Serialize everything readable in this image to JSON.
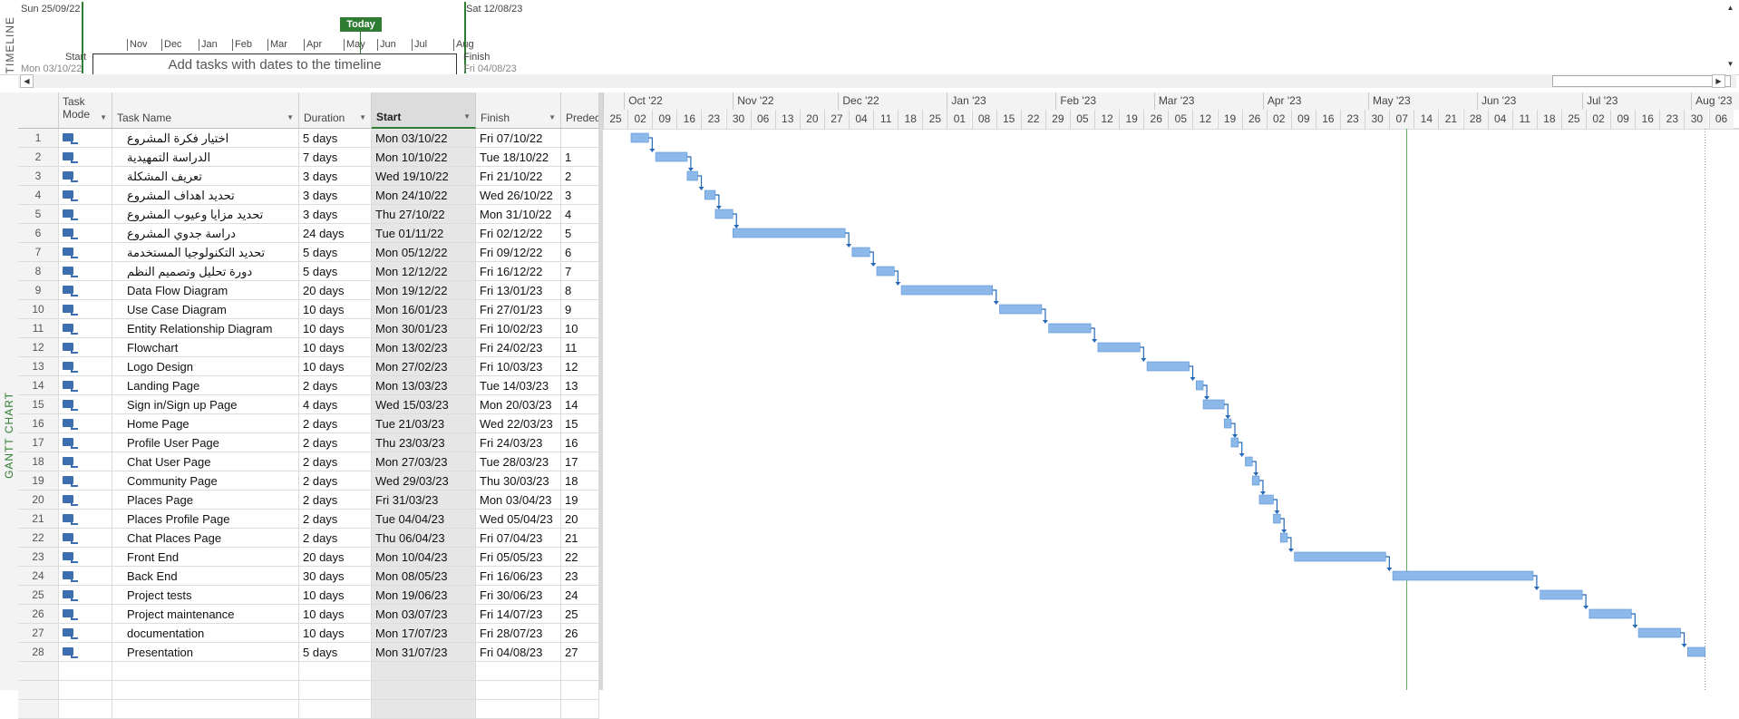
{
  "timeline": {
    "side_label": "TIMELINE",
    "range_start": "Sun 25/09/22",
    "range_end": "Sat 12/08/23",
    "today_label": "Today",
    "months": [
      "Nov",
      "Dec",
      "Jan",
      "Feb",
      "Mar",
      "Apr",
      "May",
      "Jun",
      "Jul",
      "Aug"
    ],
    "start_label": "Start",
    "start_date": "Mon 03/10/22",
    "finish_label": "Finish",
    "finish_date": "Fri 04/08/23",
    "placeholder": "Add tasks with dates to the timeline"
  },
  "gantt_side_label": "GANTT CHART",
  "columns": {
    "mode": "Task Mode",
    "name": "Task Name",
    "duration": "Duration",
    "start": "Start",
    "finish": "Finish",
    "pred": "Predec"
  },
  "chart_header": {
    "months": [
      "Oct '22",
      "Nov '22",
      "Dec '22",
      "Jan '23",
      "Feb '23",
      "Mar '23",
      "Apr '23",
      "May '23",
      "Jun '23",
      "Jul '23",
      "Aug '23"
    ],
    "days": [
      "25",
      "02",
      "09",
      "16",
      "23",
      "30",
      "06",
      "13",
      "20",
      "27",
      "04",
      "11",
      "18",
      "25",
      "01",
      "08",
      "15",
      "22",
      "29",
      "05",
      "12",
      "19",
      "26",
      "05",
      "12",
      "19",
      "26",
      "02",
      "09",
      "16",
      "23",
      "30",
      "07",
      "14",
      "21",
      "28",
      "04",
      "11",
      "18",
      "25",
      "02",
      "09",
      "16",
      "23",
      "30",
      "06"
    ]
  },
  "tasks": [
    {
      "id": "1",
      "name": "اختيار فكرة المشروع",
      "duration": "5 days",
      "start": "Mon 03/10/22",
      "finish": "Fri 07/10/22",
      "pred": ""
    },
    {
      "id": "2",
      "name": "الدراسة التمهيدية",
      "duration": "7 days",
      "start": "Mon 10/10/22",
      "finish": "Tue 18/10/22",
      "pred": "1"
    },
    {
      "id": "3",
      "name": "تعريف المشكلة",
      "duration": "3 days",
      "start": "Wed 19/10/22",
      "finish": "Fri 21/10/22",
      "pred": "2"
    },
    {
      "id": "4",
      "name": "تحديد اهداف المشروع",
      "duration": "3 days",
      "start": "Mon 24/10/22",
      "finish": "Wed 26/10/22",
      "pred": "3"
    },
    {
      "id": "5",
      "name": "تحديد مزايا وعيوب المشروع",
      "duration": "3 days",
      "start": "Thu 27/10/22",
      "finish": "Mon 31/10/22",
      "pred": "4"
    },
    {
      "id": "6",
      "name": "دراسة جدوي المشروع",
      "duration": "24 days",
      "start": "Tue 01/11/22",
      "finish": "Fri 02/12/22",
      "pred": "5"
    },
    {
      "id": "7",
      "name": "تحديد التكنولوجيا المستخدمة",
      "duration": "5 days",
      "start": "Mon 05/12/22",
      "finish": "Fri 09/12/22",
      "pred": "6"
    },
    {
      "id": "8",
      "name": "دورة تحليل وتصميم النظم",
      "duration": "5 days",
      "start": "Mon 12/12/22",
      "finish": "Fri 16/12/22",
      "pred": "7"
    },
    {
      "id": "9",
      "name": "Data Flow Diagram",
      "duration": "20 days",
      "start": "Mon 19/12/22",
      "finish": "Fri 13/01/23",
      "pred": "8"
    },
    {
      "id": "10",
      "name": "Use Case Diagram",
      "duration": "10 days",
      "start": "Mon 16/01/23",
      "finish": "Fri 27/01/23",
      "pred": "9"
    },
    {
      "id": "11",
      "name": "Entity Relationship Diagram",
      "duration": "10 days",
      "start": "Mon 30/01/23",
      "finish": "Fri 10/02/23",
      "pred": "10"
    },
    {
      "id": "12",
      "name": "Flowchart",
      "duration": "10 days",
      "start": "Mon 13/02/23",
      "finish": "Fri 24/02/23",
      "pred": "11"
    },
    {
      "id": "13",
      "name": "Logo Design",
      "duration": "10 days",
      "start": "Mon 27/02/23",
      "finish": "Fri 10/03/23",
      "pred": "12"
    },
    {
      "id": "14",
      "name": "Landing Page",
      "duration": "2 days",
      "start": "Mon 13/03/23",
      "finish": "Tue 14/03/23",
      "pred": "13"
    },
    {
      "id": "15",
      "name": "Sign in/Sign up Page",
      "duration": "4 days",
      "start": "Wed 15/03/23",
      "finish": "Mon 20/03/23",
      "pred": "14"
    },
    {
      "id": "16",
      "name": "Home Page",
      "duration": "2 days",
      "start": "Tue 21/03/23",
      "finish": "Wed 22/03/23",
      "pred": "15"
    },
    {
      "id": "17",
      "name": "Profile User Page",
      "duration": "2 days",
      "start": "Thu 23/03/23",
      "finish": "Fri 24/03/23",
      "pred": "16"
    },
    {
      "id": "18",
      "name": "Chat User Page",
      "duration": "2 days",
      "start": "Mon 27/03/23",
      "finish": "Tue 28/03/23",
      "pred": "17"
    },
    {
      "id": "19",
      "name": "Community Page",
      "duration": "2 days",
      "start": "Wed 29/03/23",
      "finish": "Thu 30/03/23",
      "pred": "18"
    },
    {
      "id": "20",
      "name": "Places Page",
      "duration": "2 days",
      "start": "Fri 31/03/23",
      "finish": "Mon 03/04/23",
      "pred": "19"
    },
    {
      "id": "21",
      "name": "Places Profile Page",
      "duration": "2 days",
      "start": "Tue 04/04/23",
      "finish": "Wed 05/04/23",
      "pred": "20"
    },
    {
      "id": "22",
      "name": "Chat Places Page",
      "duration": "2 days",
      "start": "Thu 06/04/23",
      "finish": "Fri 07/04/23",
      "pred": "21"
    },
    {
      "id": "23",
      "name": "Front End",
      "duration": "20 days",
      "start": "Mon 10/04/23",
      "finish": "Fri 05/05/23",
      "pred": "22"
    },
    {
      "id": "24",
      "name": "Back End",
      "duration": "30 days",
      "start": "Mon 08/05/23",
      "finish": "Fri 16/06/23",
      "pred": "23"
    },
    {
      "id": "25",
      "name": "Project tests",
      "duration": "10 days",
      "start": "Mon 19/06/23",
      "finish": "Fri 30/06/23",
      "pred": "24"
    },
    {
      "id": "26",
      "name": "Project maintenance",
      "duration": "10 days",
      "start": "Mon 03/07/23",
      "finish": "Fri 14/07/23",
      "pred": "25"
    },
    {
      "id": "27",
      "name": "documentation",
      "duration": "10 days",
      "start": "Mon 17/07/23",
      "finish": "Fri 28/07/23",
      "pred": "26"
    },
    {
      "id": "28",
      "name": "Presentation",
      "duration": "5 days",
      "start": "Mon 31/07/23",
      "finish": "Fri 04/08/23",
      "pred": "27"
    }
  ],
  "colors": {
    "accent": "#2f7d32",
    "bar": "#8db8ea",
    "bar_border": "#5b93d6",
    "link": "#2468b8"
  }
}
